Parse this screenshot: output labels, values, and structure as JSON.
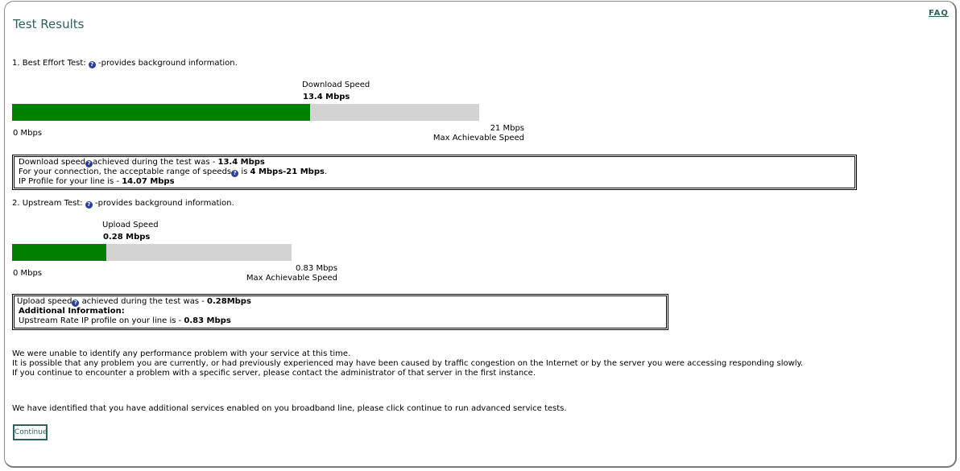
{
  "header": {
    "title": "Test Results",
    "faq_link": "FAQ"
  },
  "download": {
    "section_label": "1. Best Effort Test:",
    "section_suffix": "-provides background information.",
    "speed_label": "Download  Speed",
    "speed_value": "13.4 Mbps",
    "progress_fraction": 0.638,
    "min_label": "0 Mbps",
    "max_label": "21 Mbps",
    "max_caption": "Max Achievable Speed",
    "info": {
      "line1_pre": "Download speed",
      "line1_mid": "achieved during the test was - ",
      "line1_value": "13.4 Mbps",
      "line2_pre": "For your connection, the acceptable range of speeds",
      "line2_mid": " is ",
      "line2_value": "4 Mbps-21 Mbps",
      "line2_end": ".",
      "line3_pre": "IP Profile for your line is - ",
      "line3_value": "14.07 Mbps"
    }
  },
  "upload": {
    "section_label": "2. Upstream Test:",
    "section_suffix": "-provides background information.",
    "speed_label": "Upload Speed",
    "speed_value": "0.28 Mbps",
    "progress_fraction": 0.337,
    "min_label": "0 Mbps",
    "max_label": "0.83 Mbps",
    "max_caption": "Max Achievable Speed",
    "info": {
      "line1_pre": "Upload speed",
      "line1_mid": " achieved during the test was - ",
      "line1_value": "0.28Mbps",
      "line2": "Additional Information:",
      "line3_pre": "Upstream Rate IP profile on your line is - ",
      "line3_value": "0.83 Mbps"
    }
  },
  "messages": [
    "We were unable to identify any performance problem with your service at this time.",
    "It is possible that any problem you are currently, or had previously experienced may have been caused by traffic congestion on the Internet or by the server you were accessing responding slowly.",
    "If you continue to encounter a problem with a specific server, please contact the administrator of that server in the first instance."
  ],
  "advanced_message": "We have identified that you have additional services enabled on you broadband line, please click continue to run advanced service tests.",
  "continue_button": "Continue",
  "help_icon": "?",
  "colors": {
    "accent": "#2f5f5f",
    "bar_fill": "#008000",
    "bar_track": "#d3d3d3",
    "help_icon": "#2b3f9a"
  }
}
